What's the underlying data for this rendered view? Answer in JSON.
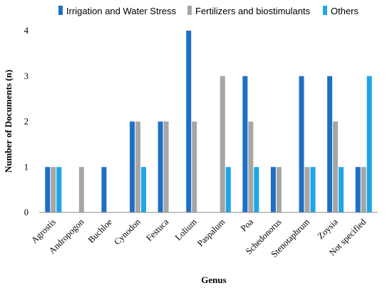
{
  "chart_data": {
    "type": "bar",
    "title": "",
    "xlabel": "Genus",
    "ylabel": "Number of Documents (n)",
    "ylim": [
      0,
      4
    ],
    "yticks": [
      0,
      1,
      2,
      3,
      4
    ],
    "grid": false,
    "legend_position": "top",
    "categories": [
      "Agrostis",
      "Andropogon",
      "Buchloe",
      "Cynodon",
      "Festuca",
      "Lolium",
      "Paspalum",
      "Poa",
      "Schedonorus",
      "Stenotaphrum",
      "Zoysia",
      "Not specified"
    ],
    "series": [
      {
        "name": "Irrigation and Water Stress",
        "color": "#1f6fc6",
        "values": [
          1,
          0,
          1,
          2,
          2,
          4,
          0,
          3,
          1,
          3,
          3,
          1
        ]
      },
      {
        "name": "Fertilizers and biostimulants",
        "color": "#a6a6a6",
        "values": [
          1,
          1,
          0,
          2,
          2,
          2,
          3,
          2,
          1,
          1,
          2,
          1
        ]
      },
      {
        "name": "Others",
        "color": "#1ea6e6",
        "values": [
          1,
          0,
          0,
          1,
          0,
          0,
          1,
          1,
          0,
          1,
          1,
          3
        ]
      }
    ]
  }
}
